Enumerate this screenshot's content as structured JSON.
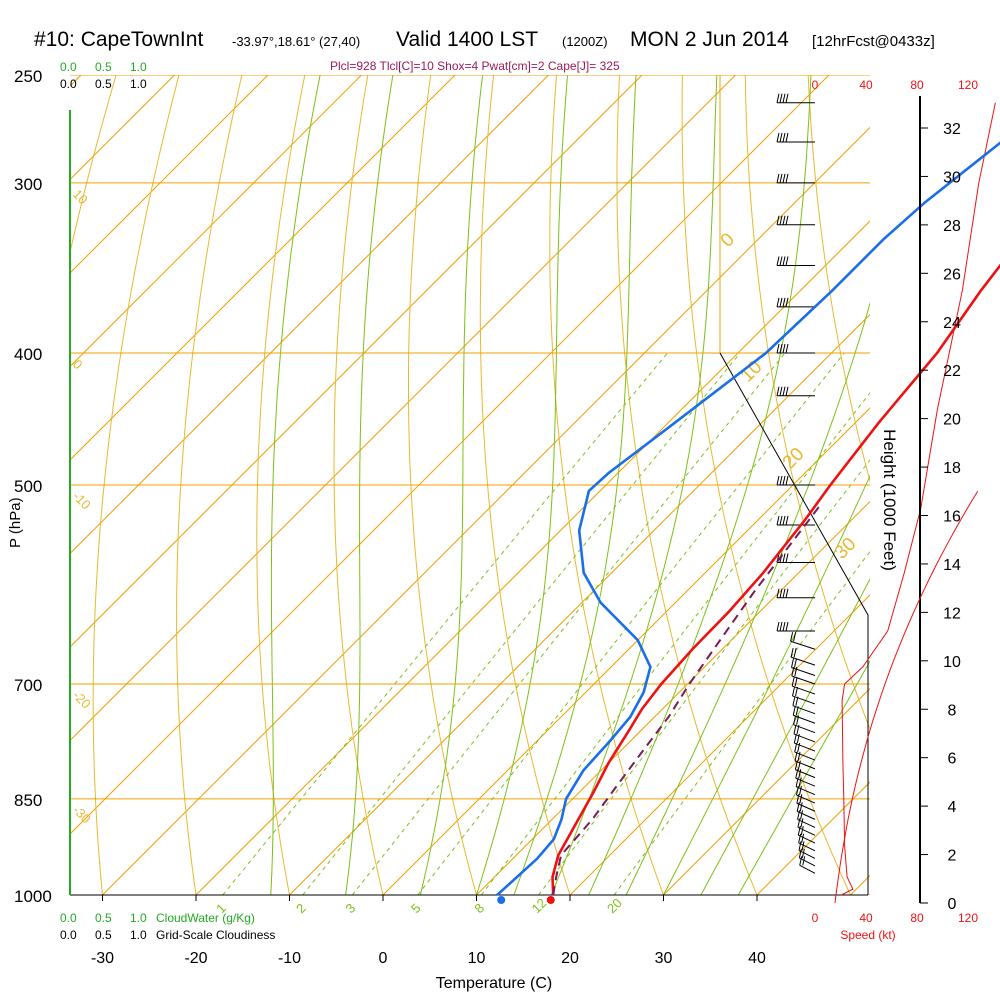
{
  "header": {
    "station": "#10: CapeTownInt",
    "coords": "-33.97°,18.61° (27,40)",
    "valid": "Valid 1400 LST",
    "zulu": "(1200Z)",
    "date": "MON 2 Jun 2014",
    "forecast": "[12hrFcst@0433z]",
    "stats": "Plcl=928 Tlcl[C]=10 Shox=4 Pwat[cm]=2 Cape[J]= 325"
  },
  "cloud_scale": {
    "water_ticks": [
      "0.0",
      "0.5",
      "1.0"
    ],
    "cover_ticks": [
      "0.0",
      "0.5",
      "1.0"
    ],
    "water_label": "CloudWater (g/Kg)",
    "cover_label": "Grid-Scale Cloudiness"
  },
  "speed_scale": {
    "ticks": [
      "0",
      "40",
      "80",
      "120"
    ],
    "label": "Speed (kt)"
  },
  "colors": {
    "temperature": "#ee1111",
    "dewpoint": "#1a6fe8",
    "parcel": "#7a1a5a",
    "isotherm": "#f0a000",
    "dry_adiabat": "#e8b830",
    "moist_adiabat": "#7cc018",
    "mixing_ratio": "#7cc018",
    "cloud_water": "#22aa22",
    "speed": "#ee1111"
  },
  "chart_data": {
    "type": "line",
    "title": "",
    "xlabel": "Temperature (C)",
    "ylabel": "P (hPa)",
    "y2label": "Height (1000 Feet)",
    "xlim": [
      -35,
      45
    ],
    "ylim": [
      1000,
      250
    ],
    "x_ticks": [
      -30,
      -20,
      -10,
      0,
      10,
      20,
      30,
      40
    ],
    "y_ticks": [
      250,
      300,
      400,
      500,
      700,
      850,
      1000
    ],
    "height_ticks": [
      0,
      2,
      4,
      6,
      8,
      10,
      12,
      14,
      16,
      18,
      20,
      22,
      24,
      26,
      28,
      30,
      32
    ],
    "isotherm_labels": [
      "10",
      "0",
      "-10",
      "-20",
      "-30"
    ],
    "right_isotherm_labels": [
      "0",
      "10",
      "20",
      "30"
    ],
    "mixing_ratio_labels": [
      "1",
      "2",
      "3",
      "5",
      "8",
      "12",
      "20"
    ],
    "series": [
      {
        "key": "temperature",
        "points": [
          [
            18.2,
            1000
          ],
          [
            16.2,
            970
          ],
          [
            14.5,
            935
          ],
          [
            12.8,
            880
          ],
          [
            11.5,
            840
          ],
          [
            10.0,
            800
          ],
          [
            8.8,
            760
          ],
          [
            7.8,
            730
          ],
          [
            7.2,
            700
          ],
          [
            6.8,
            660
          ],
          [
            6.7,
            620
          ],
          [
            6.2,
            580
          ],
          [
            5.0,
            530
          ],
          [
            4.0,
            500
          ],
          [
            2.5,
            450
          ],
          [
            1.3,
            400
          ],
          [
            -0.7,
            360
          ],
          [
            -2.4,
            320
          ],
          [
            -3.2,
            300
          ],
          [
            -3.3,
            280
          ],
          [
            -2.7,
            265
          ]
        ]
      },
      {
        "key": "dewpoint",
        "points": [
          [
            12.2,
            1000
          ],
          [
            12.4,
            970
          ],
          [
            12.6,
            940
          ],
          [
            12.3,
            910
          ],
          [
            11.0,
            880
          ],
          [
            9.3,
            850
          ],
          [
            8.1,
            810
          ],
          [
            7.8,
            770
          ],
          [
            7.4,
            740
          ],
          [
            6.2,
            710
          ],
          [
            4.2,
            680
          ],
          [
            0.0,
            650
          ],
          [
            -8.0,
            610
          ],
          [
            -13.0,
            580
          ],
          [
            -18.0,
            540
          ],
          [
            -21.2,
            505
          ],
          [
            -21.0,
            490
          ],
          [
            -19.3,
            450
          ],
          [
            -17.0,
            400
          ],
          [
            -16.6,
            360
          ],
          [
            -16.6,
            330
          ],
          [
            -16.1,
            310
          ],
          [
            -15.0,
            290
          ],
          [
            -13.5,
            265
          ]
        ]
      },
      {
        "key": "parcel",
        "points": [
          [
            18.2,
            1000
          ],
          [
            16.6,
            970
          ],
          [
            14.8,
            935
          ],
          [
            14.3,
            880
          ],
          [
            13.5,
            840
          ],
          [
            12.5,
            790
          ],
          [
            11.5,
            740
          ],
          [
            10.2,
            700
          ],
          [
            8.8,
            650
          ],
          [
            7.3,
            600
          ],
          [
            6.0,
            550
          ],
          [
            5.0,
            515
          ]
        ]
      }
    ],
    "surface_markers": [
      {
        "key": "dewpoint",
        "x": 13.5,
        "p": 1000
      },
      {
        "key": "temperature",
        "x": 18.8,
        "p": 1000
      }
    ],
    "wind_speed_profile": [
      [
        4,
        1000
      ],
      [
        18,
        990
      ],
      [
        11,
        970
      ],
      [
        8,
        920
      ],
      [
        7,
        850
      ],
      [
        6,
        800
      ],
      [
        5,
        720
      ],
      [
        8,
        700
      ],
      [
        30,
        680
      ],
      [
        60,
        640
      ],
      [
        80,
        580
      ],
      [
        100,
        520
      ],
      [
        120,
        440
      ],
      [
        150,
        360
      ],
      [
        170,
        300
      ],
      [
        190,
        262
      ]
    ],
    "wind_barb_levels": [
      262,
      280,
      300,
      322,
      345,
      370,
      400,
      430,
      500,
      535,
      570,
      605,
      640,
      660,
      678,
      690,
      700,
      712,
      724,
      736,
      748,
      760,
      772,
      784,
      796,
      808,
      820,
      832,
      844,
      856,
      868,
      880,
      892,
      904,
      916,
      928,
      940,
      952,
      964
    ]
  }
}
